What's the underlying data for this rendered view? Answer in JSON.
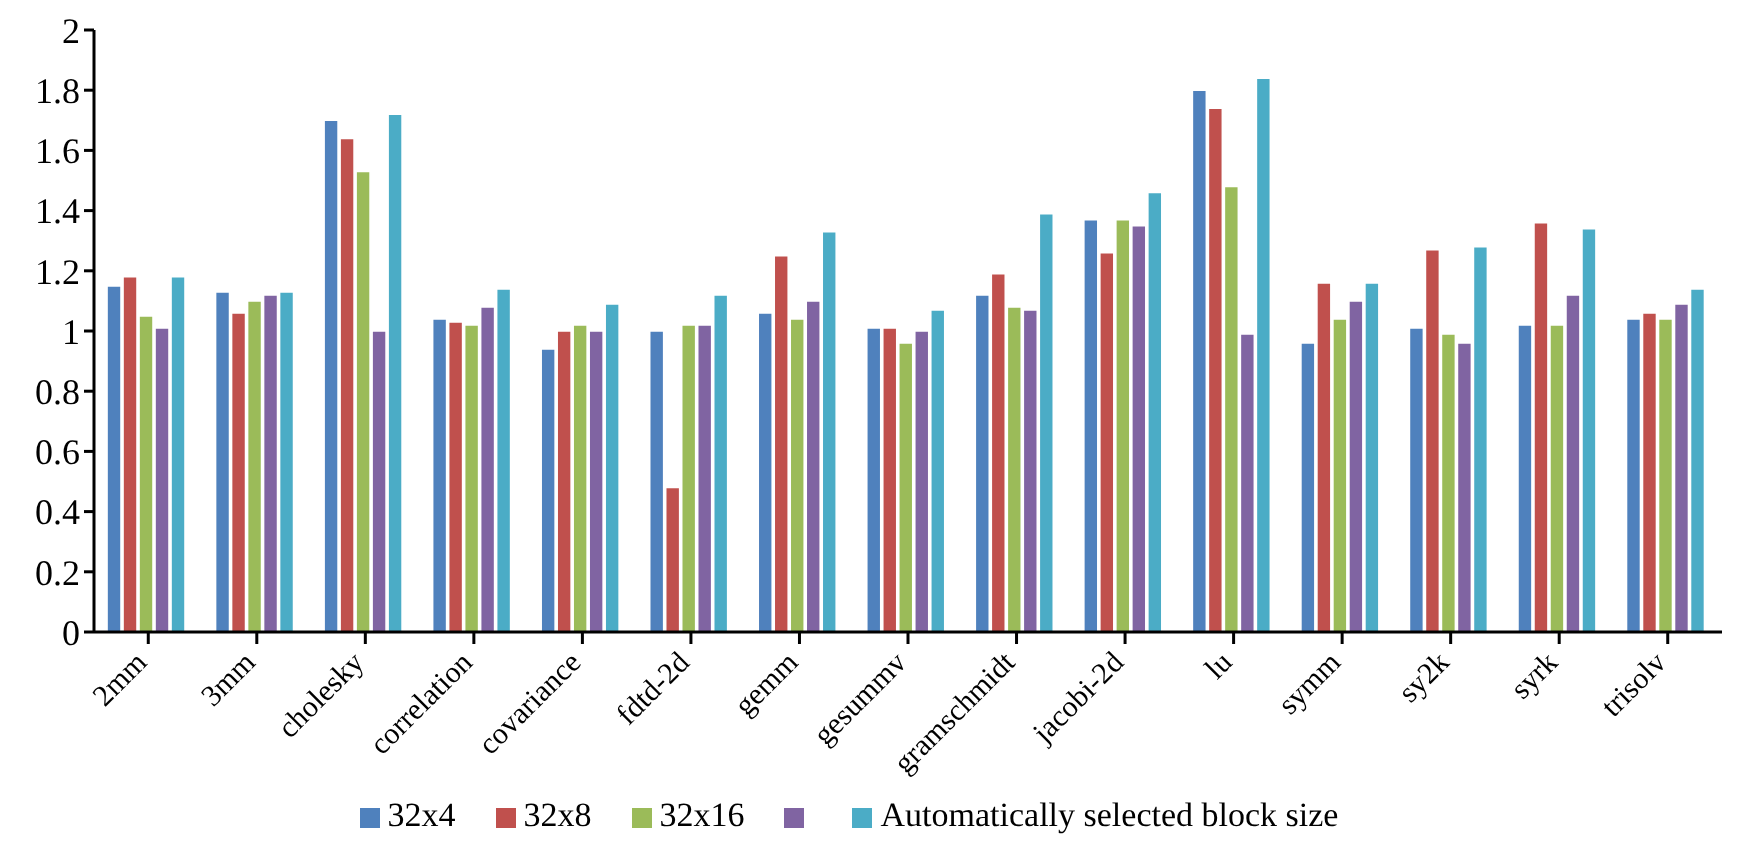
{
  "chart_data": {
    "type": "bar",
    "categories": [
      "2mm",
      "3mm",
      "cholesky",
      "correlation",
      "covariance",
      "fdtd-2d",
      "gemm",
      "gesummv",
      "gramschmidt",
      "jacobi-2d",
      "lu",
      "symm",
      "sy2k",
      "syrk",
      "trisolv"
    ],
    "series": [
      {
        "name": "32x4",
        "color": "#4f81bd",
        "values": [
          1.15,
          1.13,
          1.7,
          1.04,
          0.94,
          1.0,
          1.06,
          1.01,
          1.12,
          1.37,
          1.8,
          0.96,
          1.01,
          1.02,
          1.04
        ]
      },
      {
        "name": "32x8",
        "color": "#c0504d",
        "values": [
          1.18,
          1.06,
          1.64,
          1.03,
          1.0,
          0.48,
          1.25,
          1.01,
          1.19,
          1.26,
          1.74,
          1.16,
          1.27,
          1.36,
          1.06
        ]
      },
      {
        "name": "32x16",
        "color": "#9bbb59",
        "values": [
          1.05,
          1.1,
          1.53,
          1.02,
          1.02,
          1.02,
          1.04,
          0.96,
          1.08,
          1.37,
          1.48,
          1.04,
          0.99,
          1.02,
          1.04
        ]
      },
      {
        "color": "#8064a2",
        "values": [
          1.01,
          1.12,
          1.0,
          1.08,
          1.0,
          1.02,
          1.1,
          1.0,
          1.07,
          1.35,
          0.99,
          1.1,
          0.96,
          1.12,
          1.09
        ]
      },
      {
        "name": "Automatically selected block size",
        "color": "#4bacc6",
        "values": [
          1.18,
          1.13,
          1.72,
          1.14,
          1.09,
          1.12,
          1.33,
          1.07,
          1.39,
          1.46,
          1.84,
          1.16,
          1.28,
          1.34,
          1.14
        ]
      }
    ],
    "ylim": [
      0,
      2
    ],
    "yticks": [
      0,
      0.2,
      0.4,
      0.6,
      0.8,
      1,
      1.2,
      1.4,
      1.6,
      1.8,
      2
    ],
    "grid": false,
    "legend": "bottom"
  }
}
